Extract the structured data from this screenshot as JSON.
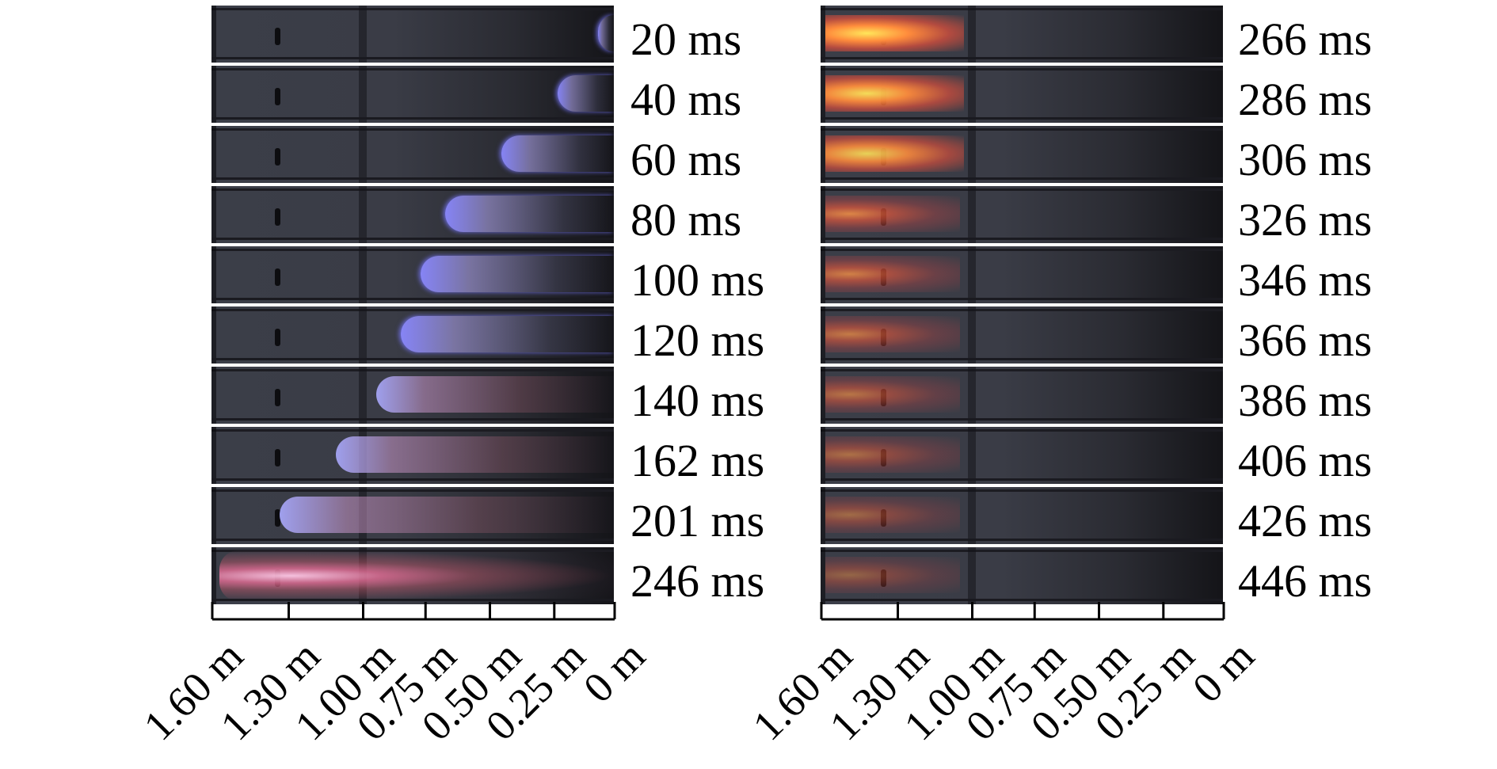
{
  "panels": [
    {
      "frames": [
        "20 ms",
        "40 ms",
        "60 ms",
        "80 ms",
        "100 ms",
        "120 ms",
        "140 ms",
        "162 ms",
        "201 ms",
        "246 ms"
      ]
    },
    {
      "frames": [
        "266 ms",
        "286 ms",
        "306 ms",
        "326 ms",
        "346 ms",
        "366 ms",
        "386 ms",
        "406 ms",
        "426 ms",
        "446 ms"
      ]
    }
  ],
  "axis": {
    "ticks": [
      "1.60 m",
      "1.30 m",
      "1.00 m",
      "0.75 m",
      "0.50 m",
      "0.25 m",
      "0 m"
    ]
  },
  "colors": {
    "flame_blue": "#8a88ff",
    "flame_orange": "#ff7a3a",
    "flame_yellow": "#ffd040",
    "tube_bg": "#3a3c46"
  }
}
